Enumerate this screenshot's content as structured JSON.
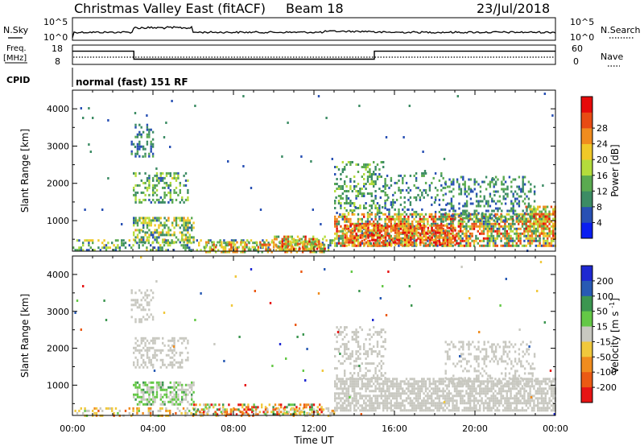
{
  "header": {
    "station": "Christmas Valley East (fitACF)",
    "beam": "Beam 18",
    "date": "23/Jul/2018"
  },
  "summary": {
    "nsky_label": "N.Sky",
    "nsearch_label": "N.Search",
    "count_ticks": [
      "10^5",
      "10^0"
    ],
    "freq_label": "Freq.",
    "freq_unit": "[MHz]",
    "freq_ticks": [
      "18",
      "8"
    ],
    "nave_label": "Nave",
    "nave_ticks": [
      "60",
      "0"
    ],
    "cpid_label": "CPID",
    "cpid_value": "normal (fast) 151 RF",
    "freq_series": [
      {
        "t": 0,
        "mhz": 15.0
      },
      {
        "t": 3.05,
        "mhz": 15.0
      },
      {
        "t": 3.05,
        "mhz": 10.5
      },
      {
        "t": 15.0,
        "mhz": 10.5
      },
      {
        "t": 15.0,
        "mhz": 15.0
      },
      {
        "t": 24,
        "mhz": 15.0
      }
    ]
  },
  "chart_data": [
    {
      "type": "heatmap",
      "name": "power",
      "ylabel": "Slant Range [km]",
      "yticks": [
        "1000",
        "2000",
        "3000",
        "4000"
      ],
      "ylim": [
        180,
        4500
      ],
      "xlim": [
        0,
        24
      ],
      "colorbar_label": "Power [dB]",
      "colorbar_ticks": [
        "4",
        "8",
        "12",
        "16",
        "20",
        "24",
        "28"
      ],
      "colors": [
        "#0a1ef0",
        "#2850b4",
        "#3c8c64",
        "#5aaa50",
        "#b4dc3c",
        "#f0c828",
        "#f08c1e",
        "#e84b14",
        "#e60a0a"
      ],
      "regions": [
        {
          "t0": 2.9,
          "t1": 4.0,
          "r0": 2700,
          "r1": 3600,
          "v0": 4,
          "v1": 12,
          "density": 0.35
        },
        {
          "t0": 3.0,
          "t1": 5.7,
          "r0": 1500,
          "r1": 2300,
          "v0": 6,
          "v1": 18,
          "density": 0.4
        },
        {
          "t0": 3.0,
          "t1": 6.0,
          "r0": 450,
          "r1": 1100,
          "v0": 6,
          "v1": 22,
          "density": 0.55
        },
        {
          "t0": 0.0,
          "t1": 13.0,
          "r0": 180,
          "r1": 500,
          "v0": 4,
          "v1": 20,
          "density": 0.35
        },
        {
          "t0": 6.5,
          "t1": 12.5,
          "r0": 180,
          "r1": 450,
          "v0": 10,
          "v1": 28,
          "density": 0.55
        },
        {
          "t0": 10.0,
          "t1": 12.5,
          "r0": 250,
          "r1": 600,
          "v0": 10,
          "v1": 30,
          "density": 0.5
        },
        {
          "t0": 13.0,
          "t1": 15.5,
          "r0": 1200,
          "r1": 2600,
          "v0": 6,
          "v1": 16,
          "density": 0.3
        },
        {
          "t0": 15.5,
          "t1": 18.5,
          "r0": 1200,
          "r1": 2300,
          "v0": 4,
          "v1": 14,
          "density": 0.2
        },
        {
          "t0": 13.0,
          "t1": 24.0,
          "r0": 300,
          "r1": 1200,
          "v0": 6,
          "v1": 30,
          "density": 0.65
        },
        {
          "t0": 13.5,
          "t1": 19.0,
          "r0": 350,
          "r1": 900,
          "v0": 18,
          "v1": 32,
          "density": 0.6
        },
        {
          "t0": 18.5,
          "t1": 23.0,
          "r0": 1000,
          "r1": 2200,
          "v0": 4,
          "v1": 14,
          "density": 0.3
        },
        {
          "t0": 22.5,
          "t1": 24.0,
          "r0": 600,
          "r1": 1400,
          "v0": 10,
          "v1": 30,
          "density": 0.6
        },
        {
          "t0": 0.0,
          "t1": 24.0,
          "r0": 180,
          "r1": 4500,
          "v0": 4,
          "v1": 10,
          "density": 0.004
        }
      ]
    },
    {
      "type": "heatmap",
      "name": "velocity",
      "xlabel": "Time UT",
      "ylabel": "Slant Range [km]",
      "xticks": [
        "00:00",
        "04:00",
        "08:00",
        "12:00",
        "16:00",
        "20:00",
        "00:00"
      ],
      "yticks": [
        "1000",
        "2000",
        "3000",
        "4000"
      ],
      "ylim": [
        180,
        4500
      ],
      "xlim": [
        0,
        24
      ],
      "colorbar_label": "Velocity [m s^-1]",
      "colorbar_ticks": [
        "200",
        "100",
        "50",
        "15",
        "-15",
        "-50",
        "-100",
        "-200"
      ],
      "colors": [
        "#1e28d2",
        "#285ab4",
        "#3c9650",
        "#64c846",
        "#c8c8c0",
        "#f0c83c",
        "#f08c1e",
        "#eb5a14",
        "#e61414"
      ],
      "regions": [
        {
          "t0": 2.9,
          "t1": 4.0,
          "r0": 2700,
          "r1": 3600,
          "v0": -15,
          "v1": 15,
          "density": 0.3
        },
        {
          "t0": 3.0,
          "t1": 5.7,
          "r0": 1500,
          "r1": 2300,
          "v0": -15,
          "v1": 15,
          "density": 0.35
        },
        {
          "t0": 3.0,
          "t1": 6.0,
          "r0": 450,
          "r1": 1100,
          "v0": -15,
          "v1": 80,
          "density": 0.55
        },
        {
          "t0": 0.0,
          "t1": 13.0,
          "r0": 180,
          "r1": 400,
          "v0": -120,
          "v1": 30,
          "density": 0.3
        },
        {
          "t0": 6.0,
          "t1": 12.5,
          "r0": 200,
          "r1": 500,
          "v0": -200,
          "v1": 100,
          "density": 0.5
        },
        {
          "t0": 13.0,
          "t1": 15.5,
          "r0": 1200,
          "r1": 2600,
          "v0": -15,
          "v1": 15,
          "density": 0.3
        },
        {
          "t0": 13.0,
          "t1": 24.0,
          "r0": 300,
          "r1": 1200,
          "v0": -15,
          "v1": 15,
          "density": 0.7
        },
        {
          "t0": 18.5,
          "t1": 23.0,
          "r0": 1000,
          "r1": 2200,
          "v0": -15,
          "v1": 15,
          "density": 0.3
        },
        {
          "t0": 0.0,
          "t1": 24.0,
          "r0": 180,
          "r1": 4500,
          "v0": -200,
          "v1": 200,
          "density": 0.004
        }
      ]
    }
  ]
}
